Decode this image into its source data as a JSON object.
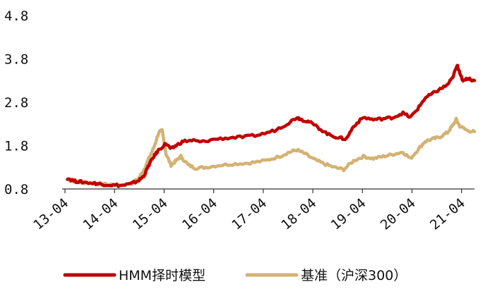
{
  "chart_data": {
    "type": "line",
    "title": "",
    "xlabel": "",
    "ylabel": "",
    "ylim": [
      0.8,
      4.8
    ],
    "yticks": [
      "0.8",
      "1.8",
      "2.8",
      "3.8",
      "4.8"
    ],
    "xticks": [
      "13-04",
      "14-04",
      "15-04",
      "16-04",
      "17-04",
      "18-04",
      "19-04",
      "20-04",
      "21-04"
    ],
    "grid": false,
    "legend": "bottom",
    "series": [
      {
        "name": "HMM择时模型",
        "color": "#c00000",
        "points": [
          [
            2013.3,
            1.05
          ],
          [
            2013.45,
            0.98
          ],
          [
            2013.6,
            0.96
          ],
          [
            2013.85,
            0.93
          ],
          [
            2014.0,
            0.91
          ],
          [
            2014.2,
            0.89
          ],
          [
            2014.4,
            0.88
          ],
          [
            2014.6,
            0.92
          ],
          [
            2014.75,
            1.0
          ],
          [
            2014.85,
            1.1
          ],
          [
            2014.95,
            1.35
          ],
          [
            2015.05,
            1.55
          ],
          [
            2015.15,
            1.7
          ],
          [
            2015.3,
            1.85
          ],
          [
            2015.4,
            1.72
          ],
          [
            2015.5,
            1.8
          ],
          [
            2015.65,
            1.9
          ],
          [
            2015.85,
            1.92
          ],
          [
            2016.0,
            1.88
          ],
          [
            2016.3,
            1.95
          ],
          [
            2016.6,
            1.98
          ],
          [
            2016.9,
            2.0
          ],
          [
            2017.2,
            2.05
          ],
          [
            2017.5,
            2.15
          ],
          [
            2017.75,
            2.3
          ],
          [
            2017.95,
            2.45
          ],
          [
            2018.05,
            2.4
          ],
          [
            2018.2,
            2.35
          ],
          [
            2018.4,
            2.2
          ],
          [
            2018.6,
            2.05
          ],
          [
            2018.8,
            1.98
          ],
          [
            2018.95,
            1.95
          ],
          [
            2019.1,
            2.25
          ],
          [
            2019.3,
            2.45
          ],
          [
            2019.5,
            2.4
          ],
          [
            2019.7,
            2.42
          ],
          [
            2019.9,
            2.45
          ],
          [
            2020.1,
            2.55
          ],
          [
            2020.25,
            2.45
          ],
          [
            2020.4,
            2.65
          ],
          [
            2020.55,
            2.9
          ],
          [
            2020.7,
            3.0
          ],
          [
            2020.85,
            3.1
          ],
          [
            2021.0,
            3.2
          ],
          [
            2021.1,
            3.35
          ],
          [
            2021.2,
            3.65
          ],
          [
            2021.25,
            3.5
          ],
          [
            2021.3,
            3.3
          ],
          [
            2021.4,
            3.35
          ],
          [
            2021.55,
            3.3
          ]
        ]
      },
      {
        "name": "基准（沪深300）",
        "color": "#d4b273",
        "points": [
          [
            2013.3,
            1.02
          ],
          [
            2013.45,
            0.97
          ],
          [
            2013.6,
            0.95
          ],
          [
            2013.85,
            0.93
          ],
          [
            2014.0,
            0.91
          ],
          [
            2014.2,
            0.9
          ],
          [
            2014.4,
            0.89
          ],
          [
            2014.6,
            0.93
          ],
          [
            2014.75,
            1.05
          ],
          [
            2014.85,
            1.25
          ],
          [
            2014.95,
            1.5
          ],
          [
            2015.05,
            1.75
          ],
          [
            2015.15,
            2.1
          ],
          [
            2015.22,
            2.15
          ],
          [
            2015.3,
            1.6
          ],
          [
            2015.4,
            1.35
          ],
          [
            2015.5,
            1.45
          ],
          [
            2015.6,
            1.55
          ],
          [
            2015.75,
            1.35
          ],
          [
            2015.9,
            1.28
          ],
          [
            2016.1,
            1.3
          ],
          [
            2016.4,
            1.35
          ],
          [
            2016.7,
            1.38
          ],
          [
            2017.0,
            1.4
          ],
          [
            2017.3,
            1.45
          ],
          [
            2017.6,
            1.55
          ],
          [
            2017.8,
            1.65
          ],
          [
            2017.95,
            1.7
          ],
          [
            2018.1,
            1.62
          ],
          [
            2018.3,
            1.48
          ],
          [
            2018.5,
            1.38
          ],
          [
            2018.7,
            1.3
          ],
          [
            2018.9,
            1.25
          ],
          [
            2019.1,
            1.45
          ],
          [
            2019.3,
            1.55
          ],
          [
            2019.5,
            1.5
          ],
          [
            2019.7,
            1.55
          ],
          [
            2019.9,
            1.6
          ],
          [
            2020.1,
            1.65
          ],
          [
            2020.25,
            1.5
          ],
          [
            2020.4,
            1.7
          ],
          [
            2020.55,
            1.9
          ],
          [
            2020.7,
            1.95
          ],
          [
            2020.85,
            2.0
          ],
          [
            2021.0,
            2.1
          ],
          [
            2021.1,
            2.25
          ],
          [
            2021.18,
            2.4
          ],
          [
            2021.25,
            2.25
          ],
          [
            2021.4,
            2.15
          ],
          [
            2021.55,
            2.12
          ]
        ]
      }
    ]
  }
}
